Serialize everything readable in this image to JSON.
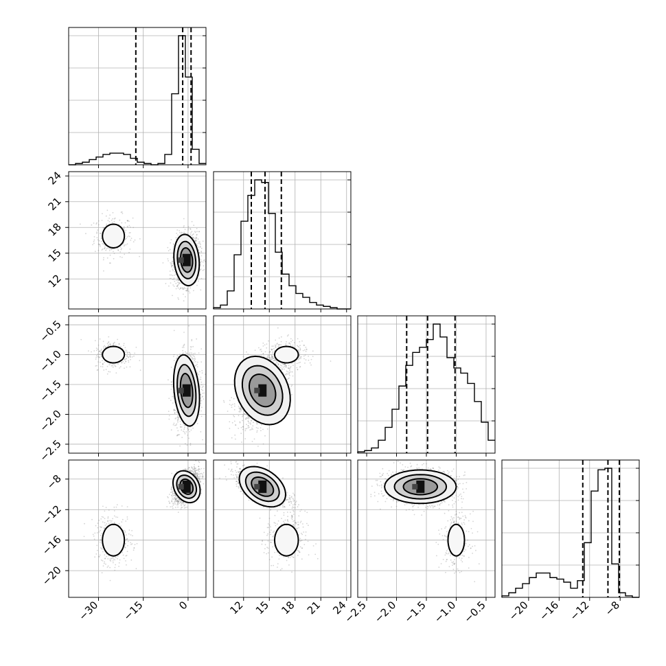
{
  "chart_data": {
    "type": "corner",
    "parameters": [
      {
        "range": [
          -40,
          6
        ],
        "ticks": [
          -30,
          -15,
          0
        ],
        "tick_labels": [
          "−30",
          "−15",
          "0"
        ]
      },
      {
        "range": [
          8.5,
          24.5
        ],
        "ticks": [
          12,
          15,
          18,
          21,
          24
        ],
        "tick_labels": [
          "12",
          "15",
          "18",
          "21",
          "24"
        ]
      },
      {
        "range": [
          -2.65,
          -0.35
        ],
        "ticks": [
          -2.5,
          -2.0,
          -1.5,
          -1.0,
          -0.5
        ],
        "tick_labels": [
          "−2.5",
          "−2.0",
          "−1.5",
          "−1.0",
          "−0.5"
        ]
      },
      {
        "range": [
          -23.5,
          -5.5
        ],
        "ticks": [
          -20,
          -16,
          -12,
          -8
        ],
        "tick_labels": [
          "−20",
          "−16",
          "−12",
          "−8"
        ]
      }
    ],
    "histograms": [
      {
        "bin_start": -40,
        "bin_width": 2.3,
        "counts": [
          0,
          1,
          2,
          4,
          6,
          8,
          9,
          9,
          8,
          5,
          2,
          1,
          0,
          1,
          8,
          55,
          100,
          68,
          12,
          1
        ],
        "quantiles": [
          -17.5,
          -1.8,
          1.0
        ]
      },
      {
        "bin_start": 8.5,
        "bin_width": 0.8,
        "counts": [
          1,
          3,
          14,
          42,
          68,
          88,
          100,
          98,
          74,
          44,
          27,
          18,
          12,
          9,
          5,
          3,
          2,
          1,
          0,
          0
        ],
        "quantiles": [
          12.9,
          14.5,
          16.4
        ]
      },
      {
        "bin_start": -2.65,
        "bin_width": 0.115,
        "counts": [
          1,
          2,
          4,
          10,
          20,
          34,
          52,
          68,
          78,
          82,
          88,
          100,
          90,
          74,
          66,
          62,
          54,
          40,
          24,
          10
        ],
        "quantiles": [
          -1.83,
          -1.48,
          -1.02
        ]
      },
      {
        "bin_start": -23.5,
        "bin_width": 0.9,
        "counts": [
          1,
          3,
          6,
          9,
          13,
          16,
          16,
          13,
          12,
          10,
          6,
          11,
          36,
          70,
          84,
          85,
          22,
          3,
          1,
          0
        ],
        "quantiles": [
          -12.9,
          -9.6,
          -8.1
        ]
      }
    ],
    "modes": [
      {
        "weight": 0.12,
        "mean": [
          -25,
          17,
          -1.0,
          -16
        ],
        "sd": [
          3.2,
          1.2,
          0.12,
          1.8
        ]
      },
      {
        "weight": 0.88,
        "mean": [
          -0.5,
          14.2,
          -1.6,
          -9.0
        ],
        "sd": [
          2.1,
          1.5,
          0.3,
          1.1
        ]
      }
    ]
  },
  "colors": {
    "line": "#000000",
    "grid": "#b0b0b0",
    "points": "#808080"
  }
}
